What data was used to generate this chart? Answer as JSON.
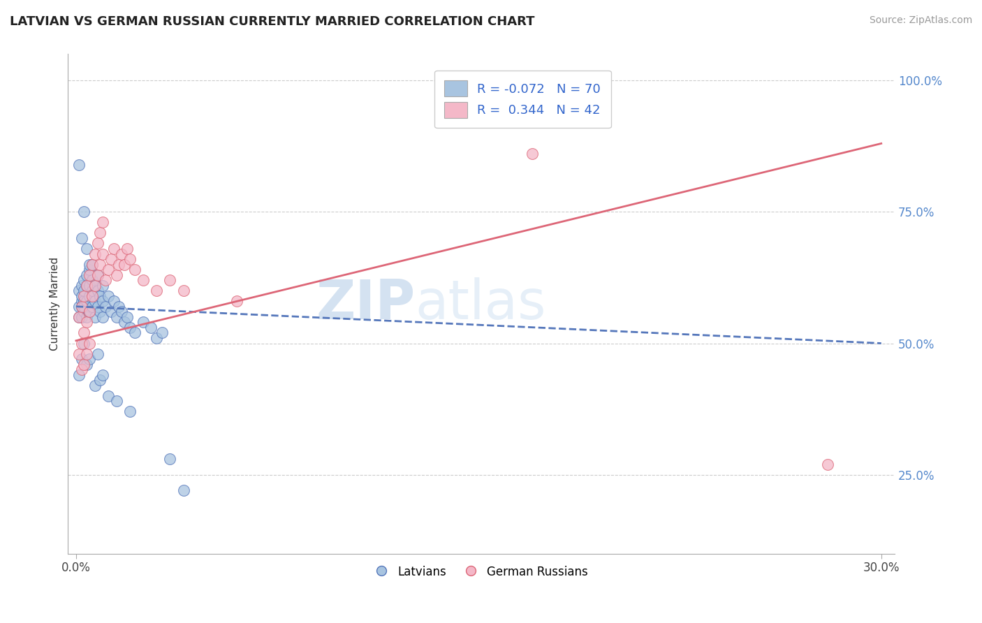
{
  "title": "LATVIAN VS GERMAN RUSSIAN CURRENTLY MARRIED CORRELATION CHART",
  "source": "Source: ZipAtlas.com",
  "ylabel": "Currently Married",
  "xlim": [
    -0.003,
    0.305
  ],
  "ylim": [
    0.1,
    1.05
  ],
  "x_ticks": [
    0.0,
    0.3
  ],
  "x_tick_labels": [
    "0.0%",
    "30.0%"
  ],
  "y_ticks_right": [
    0.25,
    0.5,
    0.75,
    1.0
  ],
  "y_tick_labels_right": [
    "25.0%",
    "50.0%",
    "75.0%",
    "100.0%"
  ],
  "legend_R1": "-0.072",
  "legend_N1": "70",
  "legend_R2": "0.344",
  "legend_N2": "42",
  "legend_label1": "Latvians",
  "legend_label2": "German Russians",
  "color_latvian": "#a8c4e0",
  "color_german_russian": "#f4b8c8",
  "color_latvian_line": "#5577bb",
  "color_german_russian_line": "#dd6677",
  "watermark_zip": "ZIP",
  "watermark_atlas": "atlas",
  "latvian_x": [
    0.001,
    0.001,
    0.001,
    0.002,
    0.002,
    0.002,
    0.002,
    0.002,
    0.003,
    0.003,
    0.003,
    0.003,
    0.003,
    0.004,
    0.004,
    0.004,
    0.004,
    0.005,
    0.005,
    0.005,
    0.005,
    0.006,
    0.006,
    0.006,
    0.007,
    0.007,
    0.007,
    0.008,
    0.008,
    0.008,
    0.009,
    0.009,
    0.01,
    0.01,
    0.01,
    0.011,
    0.012,
    0.013,
    0.014,
    0.015,
    0.016,
    0.017,
    0.018,
    0.019,
    0.02,
    0.022,
    0.025,
    0.028,
    0.03,
    0.032,
    0.001,
    0.001,
    0.002,
    0.002,
    0.003,
    0.003,
    0.004,
    0.004,
    0.005,
    0.005,
    0.006,
    0.007,
    0.008,
    0.009,
    0.01,
    0.012,
    0.015,
    0.02,
    0.035,
    0.04
  ],
  "latvian_y": [
    0.57,
    0.6,
    0.55,
    0.58,
    0.57,
    0.55,
    0.59,
    0.61,
    0.56,
    0.58,
    0.6,
    0.62,
    0.57,
    0.55,
    0.58,
    0.61,
    0.63,
    0.56,
    0.59,
    0.61,
    0.64,
    0.57,
    0.6,
    0.62,
    0.55,
    0.58,
    0.61,
    0.57,
    0.6,
    0.63,
    0.56,
    0.59,
    0.55,
    0.58,
    0.61,
    0.57,
    0.59,
    0.56,
    0.58,
    0.55,
    0.57,
    0.56,
    0.54,
    0.55,
    0.53,
    0.52,
    0.54,
    0.53,
    0.51,
    0.52,
    0.84,
    0.44,
    0.7,
    0.47,
    0.75,
    0.5,
    0.68,
    0.46,
    0.65,
    0.47,
    0.65,
    0.42,
    0.48,
    0.43,
    0.44,
    0.4,
    0.39,
    0.37,
    0.28,
    0.22
  ],
  "german_russian_x": [
    0.001,
    0.001,
    0.002,
    0.002,
    0.002,
    0.003,
    0.003,
    0.003,
    0.004,
    0.004,
    0.004,
    0.005,
    0.005,
    0.005,
    0.006,
    0.006,
    0.007,
    0.007,
    0.008,
    0.008,
    0.009,
    0.009,
    0.01,
    0.01,
    0.011,
    0.012,
    0.013,
    0.014,
    0.015,
    0.016,
    0.017,
    0.018,
    0.019,
    0.02,
    0.022,
    0.025,
    0.03,
    0.035,
    0.04,
    0.06,
    0.17,
    0.28
  ],
  "german_russian_y": [
    0.55,
    0.48,
    0.57,
    0.5,
    0.45,
    0.59,
    0.52,
    0.46,
    0.61,
    0.54,
    0.48,
    0.63,
    0.56,
    0.5,
    0.65,
    0.59,
    0.67,
    0.61,
    0.69,
    0.63,
    0.71,
    0.65,
    0.73,
    0.67,
    0.62,
    0.64,
    0.66,
    0.68,
    0.63,
    0.65,
    0.67,
    0.65,
    0.68,
    0.66,
    0.64,
    0.62,
    0.6,
    0.62,
    0.6,
    0.58,
    0.86,
    0.27
  ]
}
